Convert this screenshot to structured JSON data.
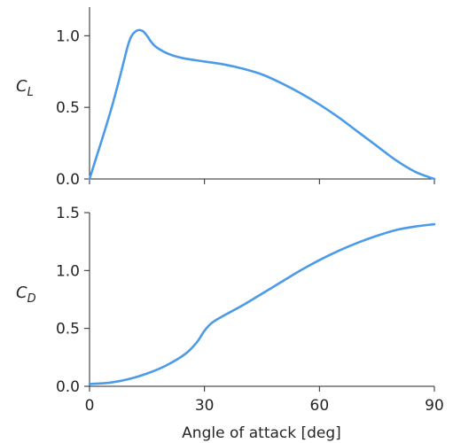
{
  "chart_data": [
    {
      "type": "line",
      "ylabel": "C",
      "ylabel_sub": "L",
      "xlim": [
        0,
        90
      ],
      "ylim": [
        0,
        1.2
      ],
      "yticks": [
        0.0,
        0.5,
        1.0
      ],
      "ytick_labels": [
        "0.0",
        "0.5",
        "1.0"
      ],
      "xticks": [
        0,
        30,
        60,
        90
      ],
      "show_xtick_labels": false,
      "color": "#4c9be8",
      "series": [
        {
          "x": [
            0,
            2,
            4,
            6,
            8,
            10,
            11,
            12,
            13,
            14,
            15,
            16,
            17,
            18,
            20,
            22,
            25,
            30,
            35,
            40,
            45,
            50,
            55,
            60,
            65,
            70,
            75,
            80,
            85,
            90
          ],
          "y": [
            0.0,
            0.17,
            0.34,
            0.52,
            0.72,
            0.93,
            1.0,
            1.03,
            1.04,
            1.03,
            1.0,
            0.96,
            0.93,
            0.91,
            0.88,
            0.86,
            0.84,
            0.82,
            0.8,
            0.77,
            0.73,
            0.67,
            0.6,
            0.52,
            0.43,
            0.33,
            0.23,
            0.13,
            0.05,
            0.0
          ]
        }
      ]
    },
    {
      "type": "line",
      "ylabel": "C",
      "ylabel_sub": "D",
      "xlabel": "Angle of attack [deg]",
      "xlim": [
        0,
        90
      ],
      "ylim": [
        0,
        1.5
      ],
      "yticks": [
        0.0,
        0.5,
        1.0,
        1.5
      ],
      "ytick_labels": [
        "0.0",
        "0.5",
        "1.0",
        "1.5"
      ],
      "xticks": [
        0,
        30,
        60,
        90
      ],
      "xtick_labels": [
        "0",
        "30",
        "60",
        "90"
      ],
      "show_xtick_labels": true,
      "color": "#4c9be8",
      "series": [
        {
          "x": [
            0,
            5,
            10,
            15,
            20,
            25,
            28,
            30,
            32,
            35,
            40,
            45,
            50,
            55,
            60,
            65,
            70,
            75,
            80,
            85,
            90
          ],
          "y": [
            0.02,
            0.03,
            0.06,
            0.11,
            0.18,
            0.28,
            0.38,
            0.48,
            0.55,
            0.61,
            0.7,
            0.8,
            0.9,
            1.0,
            1.09,
            1.17,
            1.24,
            1.3,
            1.35,
            1.38,
            1.4
          ]
        }
      ]
    }
  ]
}
